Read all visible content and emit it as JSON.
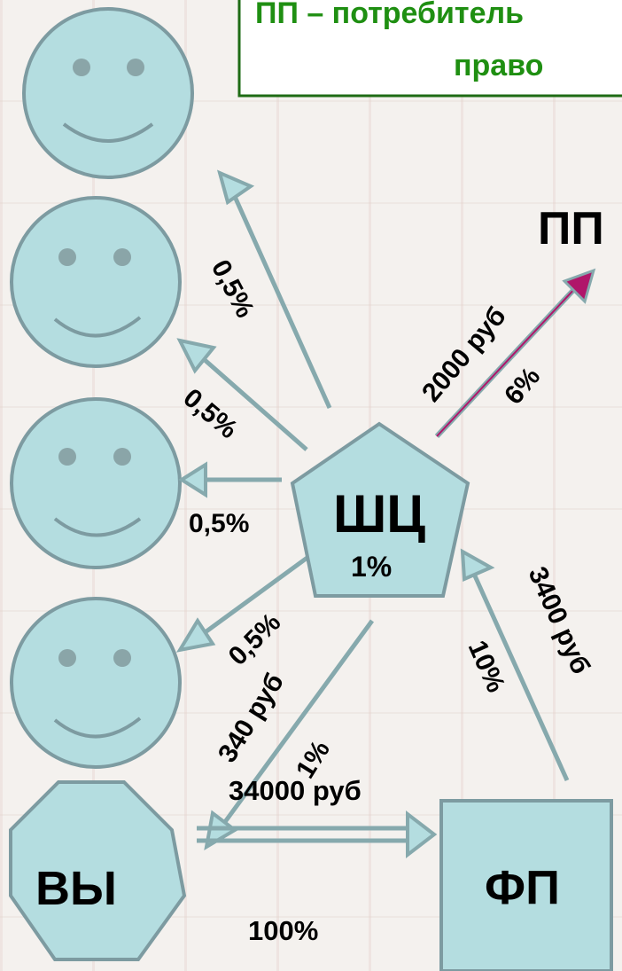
{
  "header": {
    "line1": "ПП – потребитель",
    "line2": "право"
  },
  "nodes": {
    "center_label": "ШЦ",
    "center_percent": "1%",
    "you_label": "ВЫ",
    "fp_label": "ФП",
    "pp_label": "ПП"
  },
  "edges": {
    "smiley1_percent": "0,5%",
    "smiley2_percent": "0,5%",
    "smiley3_percent": "0,5%",
    "smiley4_percent": "0,5%",
    "smiley4_amount": "340 руб",
    "you_percent": "1%",
    "you_to_fp_amount": "34000 руб",
    "you_to_fp_percent": "100%",
    "fp_to_center_percent": "10%",
    "fp_to_center_amount": "3400 руб",
    "center_to_pp_amount": "2000 руб",
    "center_to_pp_percent": "6%"
  },
  "colors": {
    "shape_fill": "#b4dde0",
    "shape_stroke": "#7d9ba1",
    "arrow": "#86a9ad",
    "arrow_accent": "#b0166a",
    "header_text": "#1f8f12",
    "header_border": "#1e6b14"
  }
}
